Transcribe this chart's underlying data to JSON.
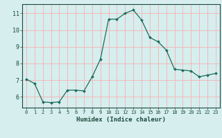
{
  "x": [
    0,
    1,
    2,
    3,
    4,
    5,
    6,
    7,
    8,
    9,
    10,
    11,
    12,
    13,
    14,
    15,
    16,
    17,
    18,
    19,
    20,
    21,
    22,
    23
  ],
  "y": [
    7.05,
    6.8,
    5.7,
    5.65,
    5.7,
    6.4,
    6.4,
    6.35,
    7.2,
    8.25,
    10.65,
    10.65,
    11.0,
    11.2,
    10.6,
    9.55,
    9.3,
    8.8,
    7.65,
    7.6,
    7.55,
    7.2,
    7.3,
    7.4
  ],
  "xlabel": "Humidex (Indice chaleur)",
  "bg_color": "#d6eeee",
  "grid_color": "#f4b8b8",
  "line_color": "#1a6b5a",
  "marker_color": "#1a6b5a",
  "xlim": [
    -0.5,
    23.5
  ],
  "ylim": [
    5.35,
    11.55
  ],
  "yticks": [
    6,
    7,
    8,
    9,
    10,
    11
  ],
  "xticks": [
    0,
    1,
    2,
    3,
    4,
    5,
    6,
    7,
    8,
    9,
    10,
    11,
    12,
    13,
    14,
    15,
    16,
    17,
    18,
    19,
    20,
    21,
    22,
    23
  ]
}
